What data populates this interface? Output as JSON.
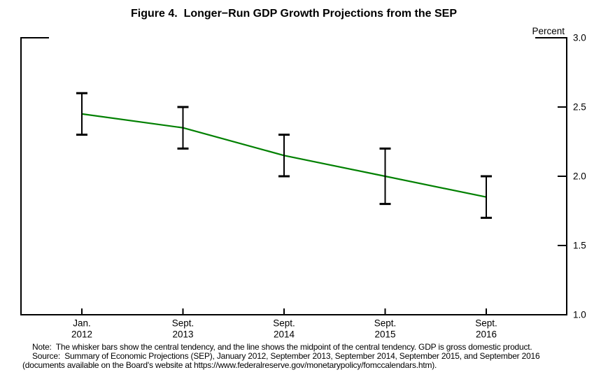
{
  "figure": {
    "title": "Figure 4.  Longer−Run GDP Growth Projections from the SEP",
    "unit_label": "Percent"
  },
  "chart_data": {
    "type": "line",
    "title": "Figure 4.  Longer−Run GDP Growth Projections from the SEP",
    "ylabel": "Percent",
    "xlabel": "",
    "ylim": [
      1.0,
      3.0
    ],
    "yticks": [
      3.0,
      2.5,
      2.0,
      1.5,
      1.0
    ],
    "grid": false,
    "legend_position": "none",
    "categories": [
      {
        "month": "Jan.",
        "year": "2012"
      },
      {
        "month": "Sept.",
        "year": "2013"
      },
      {
        "month": "Sept.",
        "year": "2014"
      },
      {
        "month": "Sept.",
        "year": "2015"
      },
      {
        "month": "Sept.",
        "year": "2016"
      }
    ],
    "series": [
      {
        "name": "central-tendency-high",
        "values": [
          2.6,
          2.5,
          2.3,
          2.2,
          2.0
        ]
      },
      {
        "name": "central-tendency-midpoint",
        "values": [
          2.45,
          2.35,
          2.15,
          2.0,
          1.85
        ]
      },
      {
        "name": "central-tendency-low",
        "values": [
          2.3,
          2.2,
          2.0,
          1.8,
          1.7
        ]
      }
    ],
    "line_color": "#008000",
    "whisker_color": "#000000",
    "axis_color": "#000000"
  },
  "notes": {
    "line1": "Note:  The whisker bars show the central tendency, and the line shows the midpoint of the central tendency. GDP is gross domestic product.",
    "line2": "Source:  Summary of Economic Projections (SEP), January 2012, September 2013, September 2014, September 2015, and September 2016",
    "line3": "(documents available on the Board's website at https://www.federalreserve.gov/monetarypolicy/fomccalendars.htm)."
  }
}
